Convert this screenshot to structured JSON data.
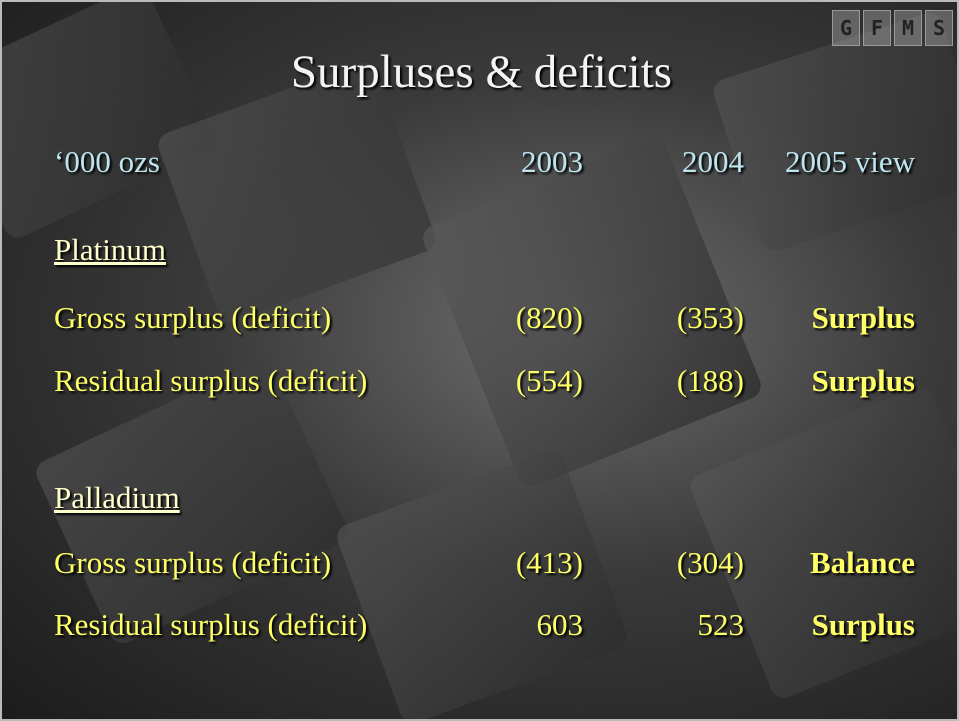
{
  "header": {
    "title": "Surpluses & deficits",
    "logo": [
      "G",
      "F",
      "M",
      "S"
    ]
  },
  "table": {
    "columns": [
      "‘000 ozs",
      "2003",
      "2004",
      "2005 view"
    ],
    "sections": [
      {
        "name": "Platinum",
        "rows": [
          [
            "Gross surplus (deficit)",
            "(820)",
            "(353)",
            "Surplus"
          ],
          [
            "Residual surplus (deficit)",
            "(554)",
            "(188)",
            "Surplus"
          ]
        ]
      },
      {
        "name": "Palladium",
        "rows": [
          [
            "Gross surplus (deficit)",
            "(413)",
            "(304)",
            "Balance"
          ],
          [
            "Residual surplus (deficit)",
            "603",
            "523",
            "Surplus"
          ]
        ]
      }
    ]
  }
}
